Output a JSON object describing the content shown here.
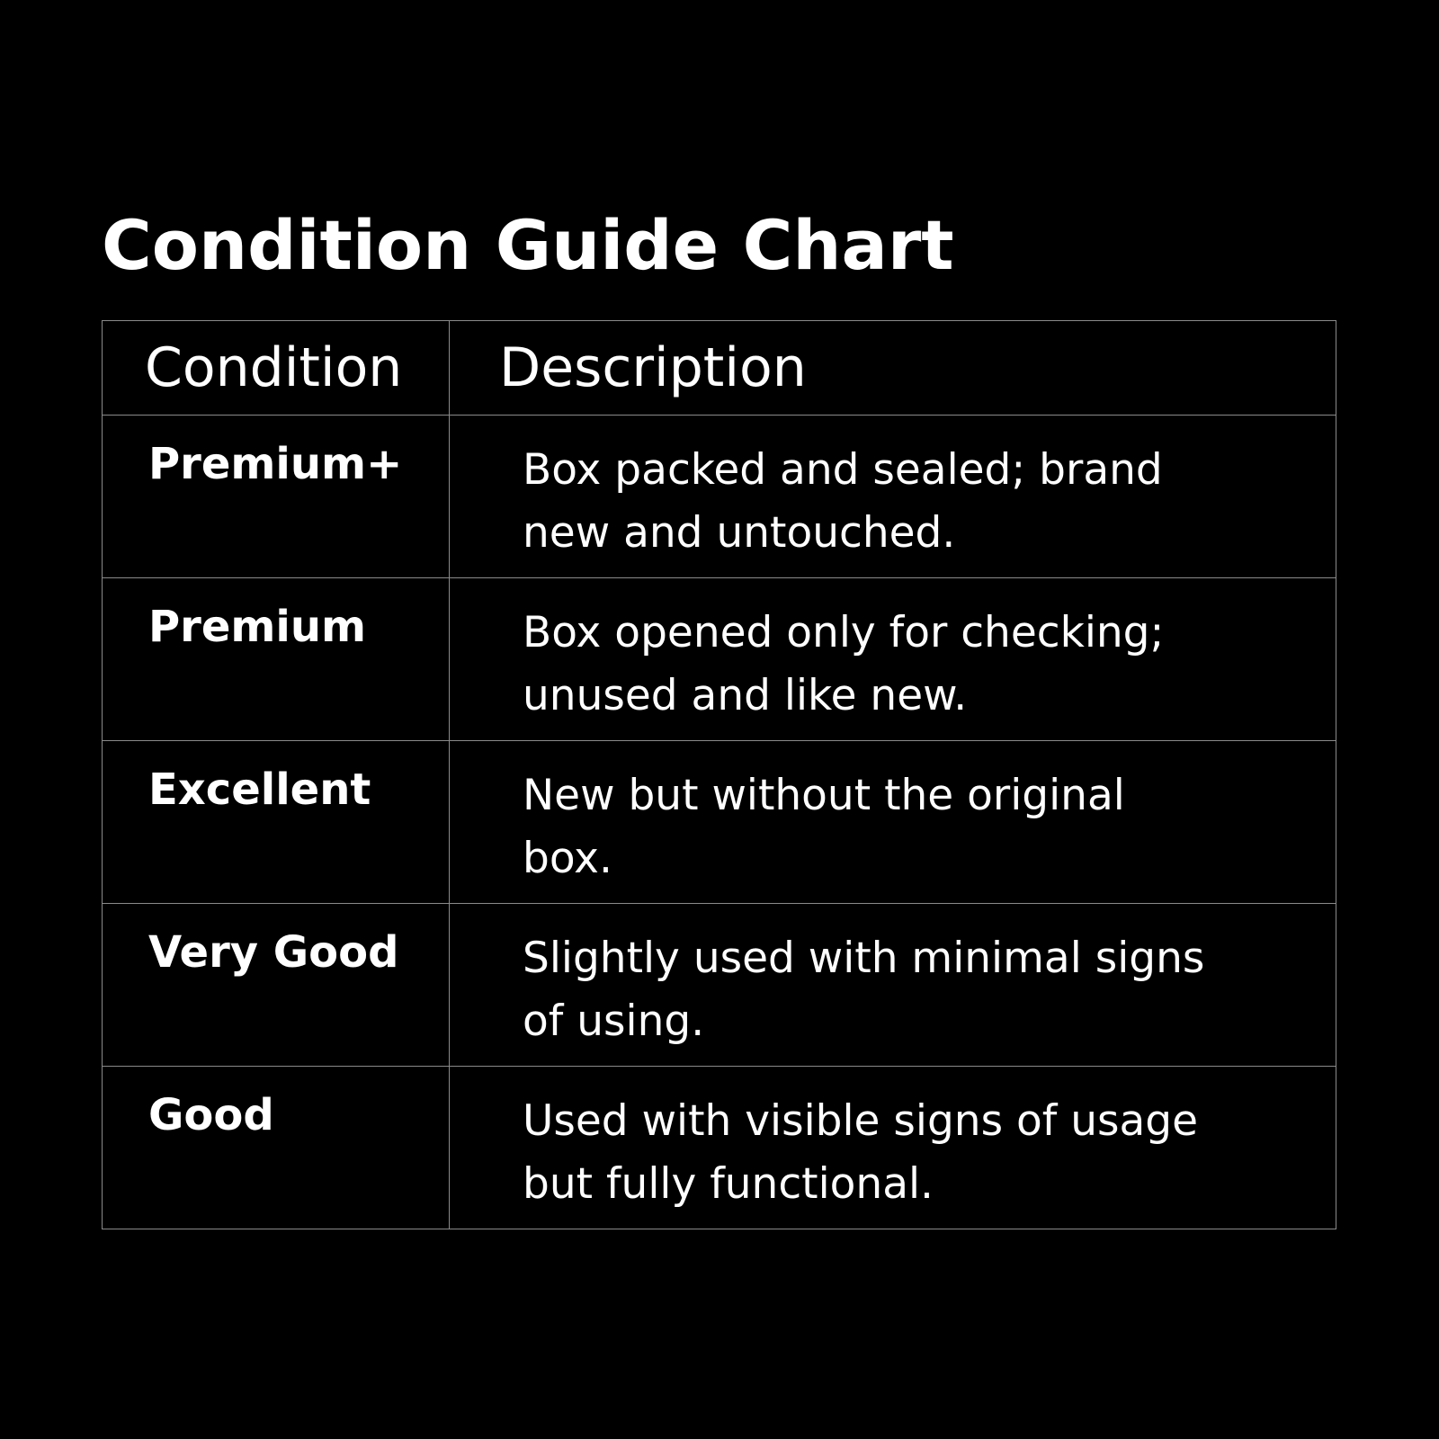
{
  "title": "Condition Guide Chart",
  "table": {
    "headers": [
      "Condition",
      "Description"
    ],
    "rows": [
      {
        "condition": "Premium+",
        "description_lines": [
          "Box packed and sealed; brand",
          "new and untouched."
        ]
      },
      {
        "condition": "Premium",
        "description_lines": [
          "Box opened only for checking;",
          "unused and like new."
        ]
      },
      {
        "condition": "Excellent",
        "description_lines": [
          "New but without the original",
          "box."
        ]
      },
      {
        "condition": "Very Good",
        "description_lines": [
          "Slightly used with minimal signs",
          "of using."
        ]
      },
      {
        "condition": "Good",
        "description_lines": [
          "Used with visible signs of usage",
          "but fully functional."
        ]
      }
    ]
  },
  "colors": {
    "background": "#000000",
    "text": "#ffffff",
    "border": "#8a8a8a"
  }
}
